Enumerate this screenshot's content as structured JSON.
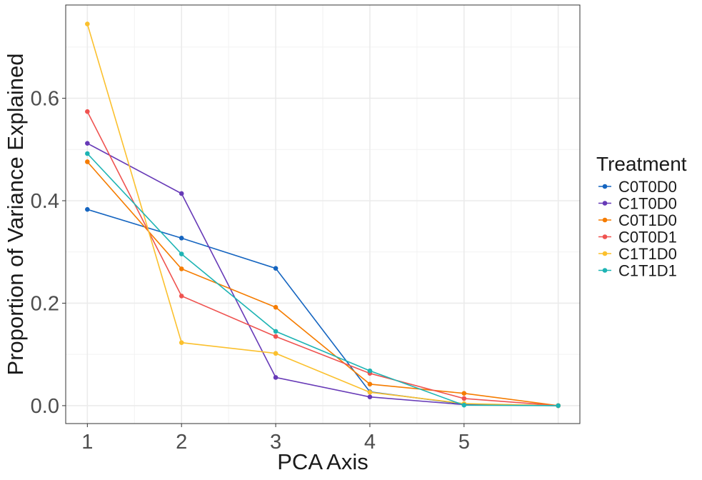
{
  "chart_data": {
    "type": "line",
    "title": "",
    "xlabel": "PCA Axis",
    "ylabel": "Proportion of Variance Explained",
    "x": [
      1,
      2,
      3,
      4,
      5,
      6
    ],
    "x_tick_labels": [
      "1",
      "2",
      "3",
      "4",
      "5"
    ],
    "y_tick_labels": [
      "0.0",
      "0.2",
      "0.4",
      "0.6"
    ],
    "y_ticks": [
      0.0,
      0.2,
      0.4,
      0.6
    ],
    "xlim": [
      0.77,
      6.23
    ],
    "ylim": [
      -0.035,
      0.782
    ],
    "grid": true,
    "legend": {
      "title": "Treatment",
      "position": "right"
    },
    "series": [
      {
        "name": "C0T0D0",
        "color": "#1565c0",
        "values": [
          0.383,
          0.327,
          0.268,
          0.027,
          0.003,
          0.0
        ]
      },
      {
        "name": "C1T0D0",
        "color": "#673ab7",
        "values": [
          0.512,
          0.414,
          0.055,
          0.017,
          0.002,
          0.0
        ]
      },
      {
        "name": "C0T1D0",
        "color": "#f57c00",
        "values": [
          0.476,
          0.267,
          0.192,
          0.042,
          0.024,
          0.0
        ]
      },
      {
        "name": "C0T0D1",
        "color": "#ef5350",
        "values": [
          0.574,
          0.214,
          0.135,
          0.063,
          0.014,
          0.0
        ]
      },
      {
        "name": "C1T1D0",
        "color": "#fbc02d",
        "values": [
          0.745,
          0.123,
          0.102,
          0.026,
          0.004,
          0.0
        ]
      },
      {
        "name": "C1T1D1",
        "color": "#1eb4b4",
        "values": [
          0.492,
          0.296,
          0.145,
          0.068,
          0.001,
          0.0
        ]
      }
    ]
  }
}
